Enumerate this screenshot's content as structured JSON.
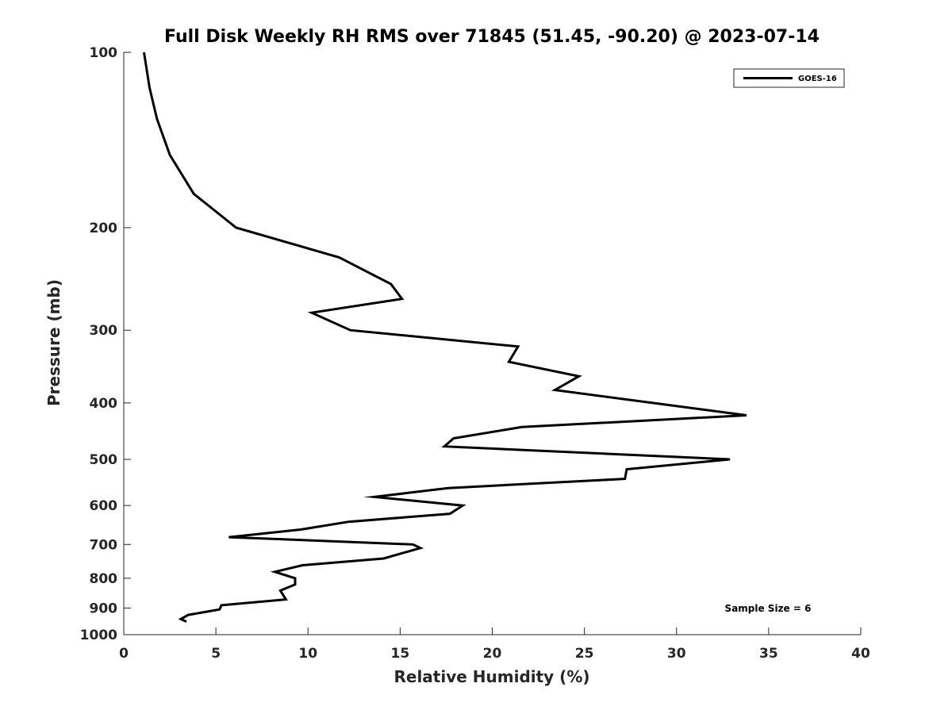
{
  "chart_data": {
    "type": "line",
    "title": "Full Disk Weekly RH RMS over 71845 (51.45, -90.20) @ 2023-07-14",
    "xlabel": "Relative Humidity (%)",
    "ylabel": "Pressure (mb)",
    "xlim": [
      0,
      40
    ],
    "ylim": [
      100,
      1000
    ],
    "y_scale": "log",
    "y_reversed": true,
    "grid": false,
    "legend_position": "top-right",
    "x_ticks": [
      0,
      5,
      10,
      15,
      20,
      25,
      30,
      35,
      40
    ],
    "y_ticks": [
      100,
      200,
      300,
      400,
      500,
      600,
      700,
      800,
      900,
      1000
    ],
    "annotation": "Sample Size = 6",
    "series": [
      {
        "name": "GOES-16",
        "color": "#000000",
        "points": [
          [
            1.1,
            100
          ],
          [
            1.4,
            115
          ],
          [
            1.8,
            130
          ],
          [
            2.5,
            150
          ],
          [
            3.8,
            175
          ],
          [
            6.1,
            200
          ],
          [
            11.7,
            225
          ],
          [
            14.5,
            250
          ],
          [
            15.1,
            265
          ],
          [
            10.2,
            280
          ],
          [
            12.3,
            300
          ],
          [
            21.4,
            320
          ],
          [
            20.9,
            340
          ],
          [
            24.7,
            360
          ],
          [
            23.4,
            380
          ],
          [
            33.8,
            420
          ],
          [
            21.6,
            440
          ],
          [
            17.9,
            460
          ],
          [
            17.4,
            475
          ],
          [
            32.9,
            500
          ],
          [
            27.3,
            520
          ],
          [
            27.2,
            540
          ],
          [
            17.6,
            560
          ],
          [
            13.6,
            580
          ],
          [
            18.4,
            600
          ],
          [
            17.7,
            620
          ],
          [
            12.2,
            640
          ],
          [
            9.6,
            660
          ],
          [
            5.7,
            680
          ],
          [
            15.7,
            700
          ],
          [
            16.1,
            710
          ],
          [
            14.1,
            740
          ],
          [
            9.7,
            760
          ],
          [
            8.2,
            780
          ],
          [
            9.3,
            800
          ],
          [
            9.3,
            820
          ],
          [
            8.5,
            840
          ],
          [
            8.7,
            860
          ],
          [
            8.8,
            870
          ],
          [
            5.3,
            890
          ],
          [
            5.2,
            905
          ],
          [
            3.5,
            925
          ],
          [
            3.1,
            940
          ],
          [
            3.4,
            950
          ]
        ]
      }
    ]
  }
}
